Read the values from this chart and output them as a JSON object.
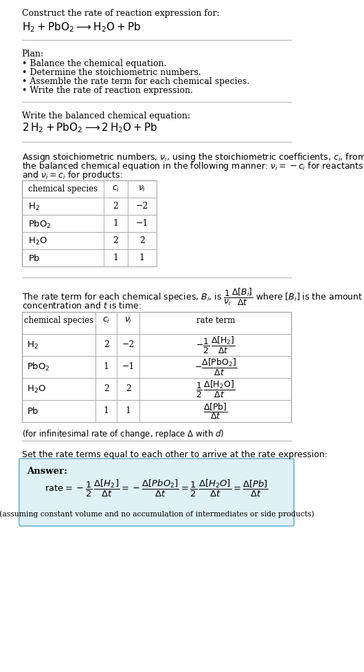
{
  "title_line1": "Construct the rate of reaction expression for:",
  "plan_header": "Plan:",
  "plan_items": [
    "• Balance the chemical equation.",
    "• Determine the stoichiometric numbers.",
    "• Assemble the rate term for each chemical species.",
    "• Write the rate of reaction expression."
  ],
  "balanced_header": "Write the balanced chemical equation:",
  "table1_rows": [
    [
      "H_2",
      "2",
      "−2"
    ],
    [
      "PbO_2",
      "1",
      "−1"
    ],
    [
      "H_2O",
      "2",
      "2"
    ],
    [
      "Pb",
      "1",
      "1"
    ]
  ],
  "table2_rows": [
    [
      "H_2",
      "2",
      "−2"
    ],
    [
      "PbO_2",
      "1",
      "−1"
    ],
    [
      "H_2O",
      "2",
      "2"
    ],
    [
      "Pb",
      "1",
      "1"
    ]
  ],
  "set_equal_text": "Set the rate terms equal to each other to arrive at the rate expression:",
  "answer_bg_color": "#dff0f7",
  "answer_border_color": "#7ab8cc",
  "bg_color": "#ffffff",
  "sep_color": "#bbbbbb"
}
